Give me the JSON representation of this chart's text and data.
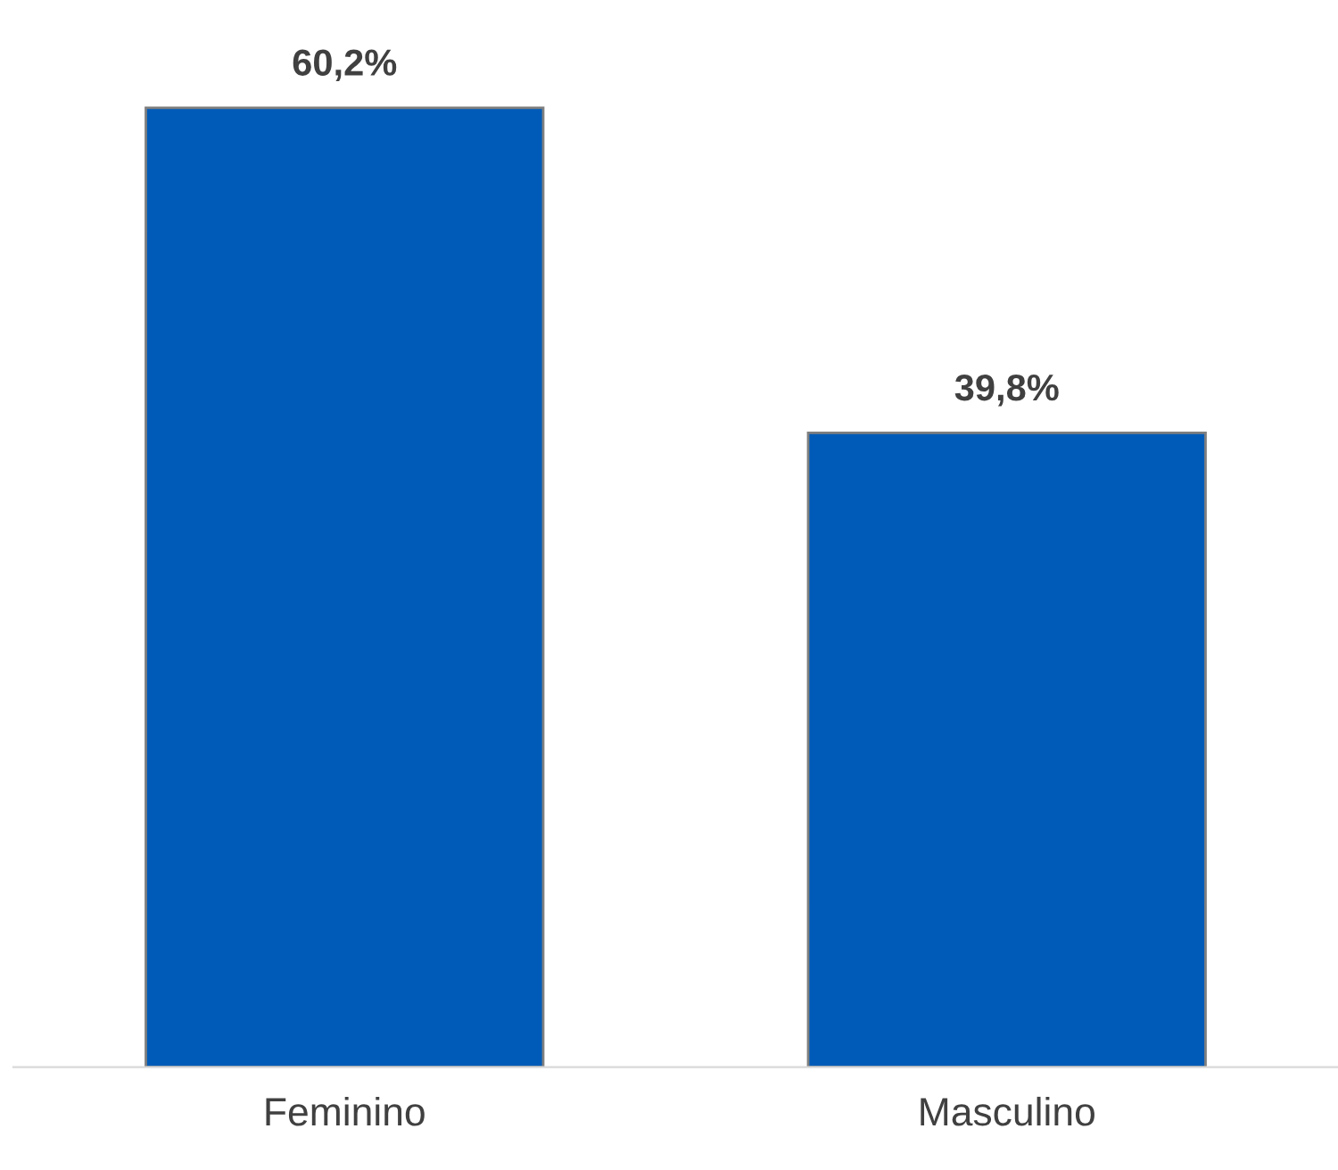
{
  "chart_data": {
    "type": "bar",
    "categories": [
      "Feminino",
      "Masculino"
    ],
    "values": [
      60.2,
      39.8
    ],
    "value_labels": [
      "60,2%",
      "39,8%"
    ],
    "color": "#005bb8",
    "grid": false,
    "legend": false
  }
}
